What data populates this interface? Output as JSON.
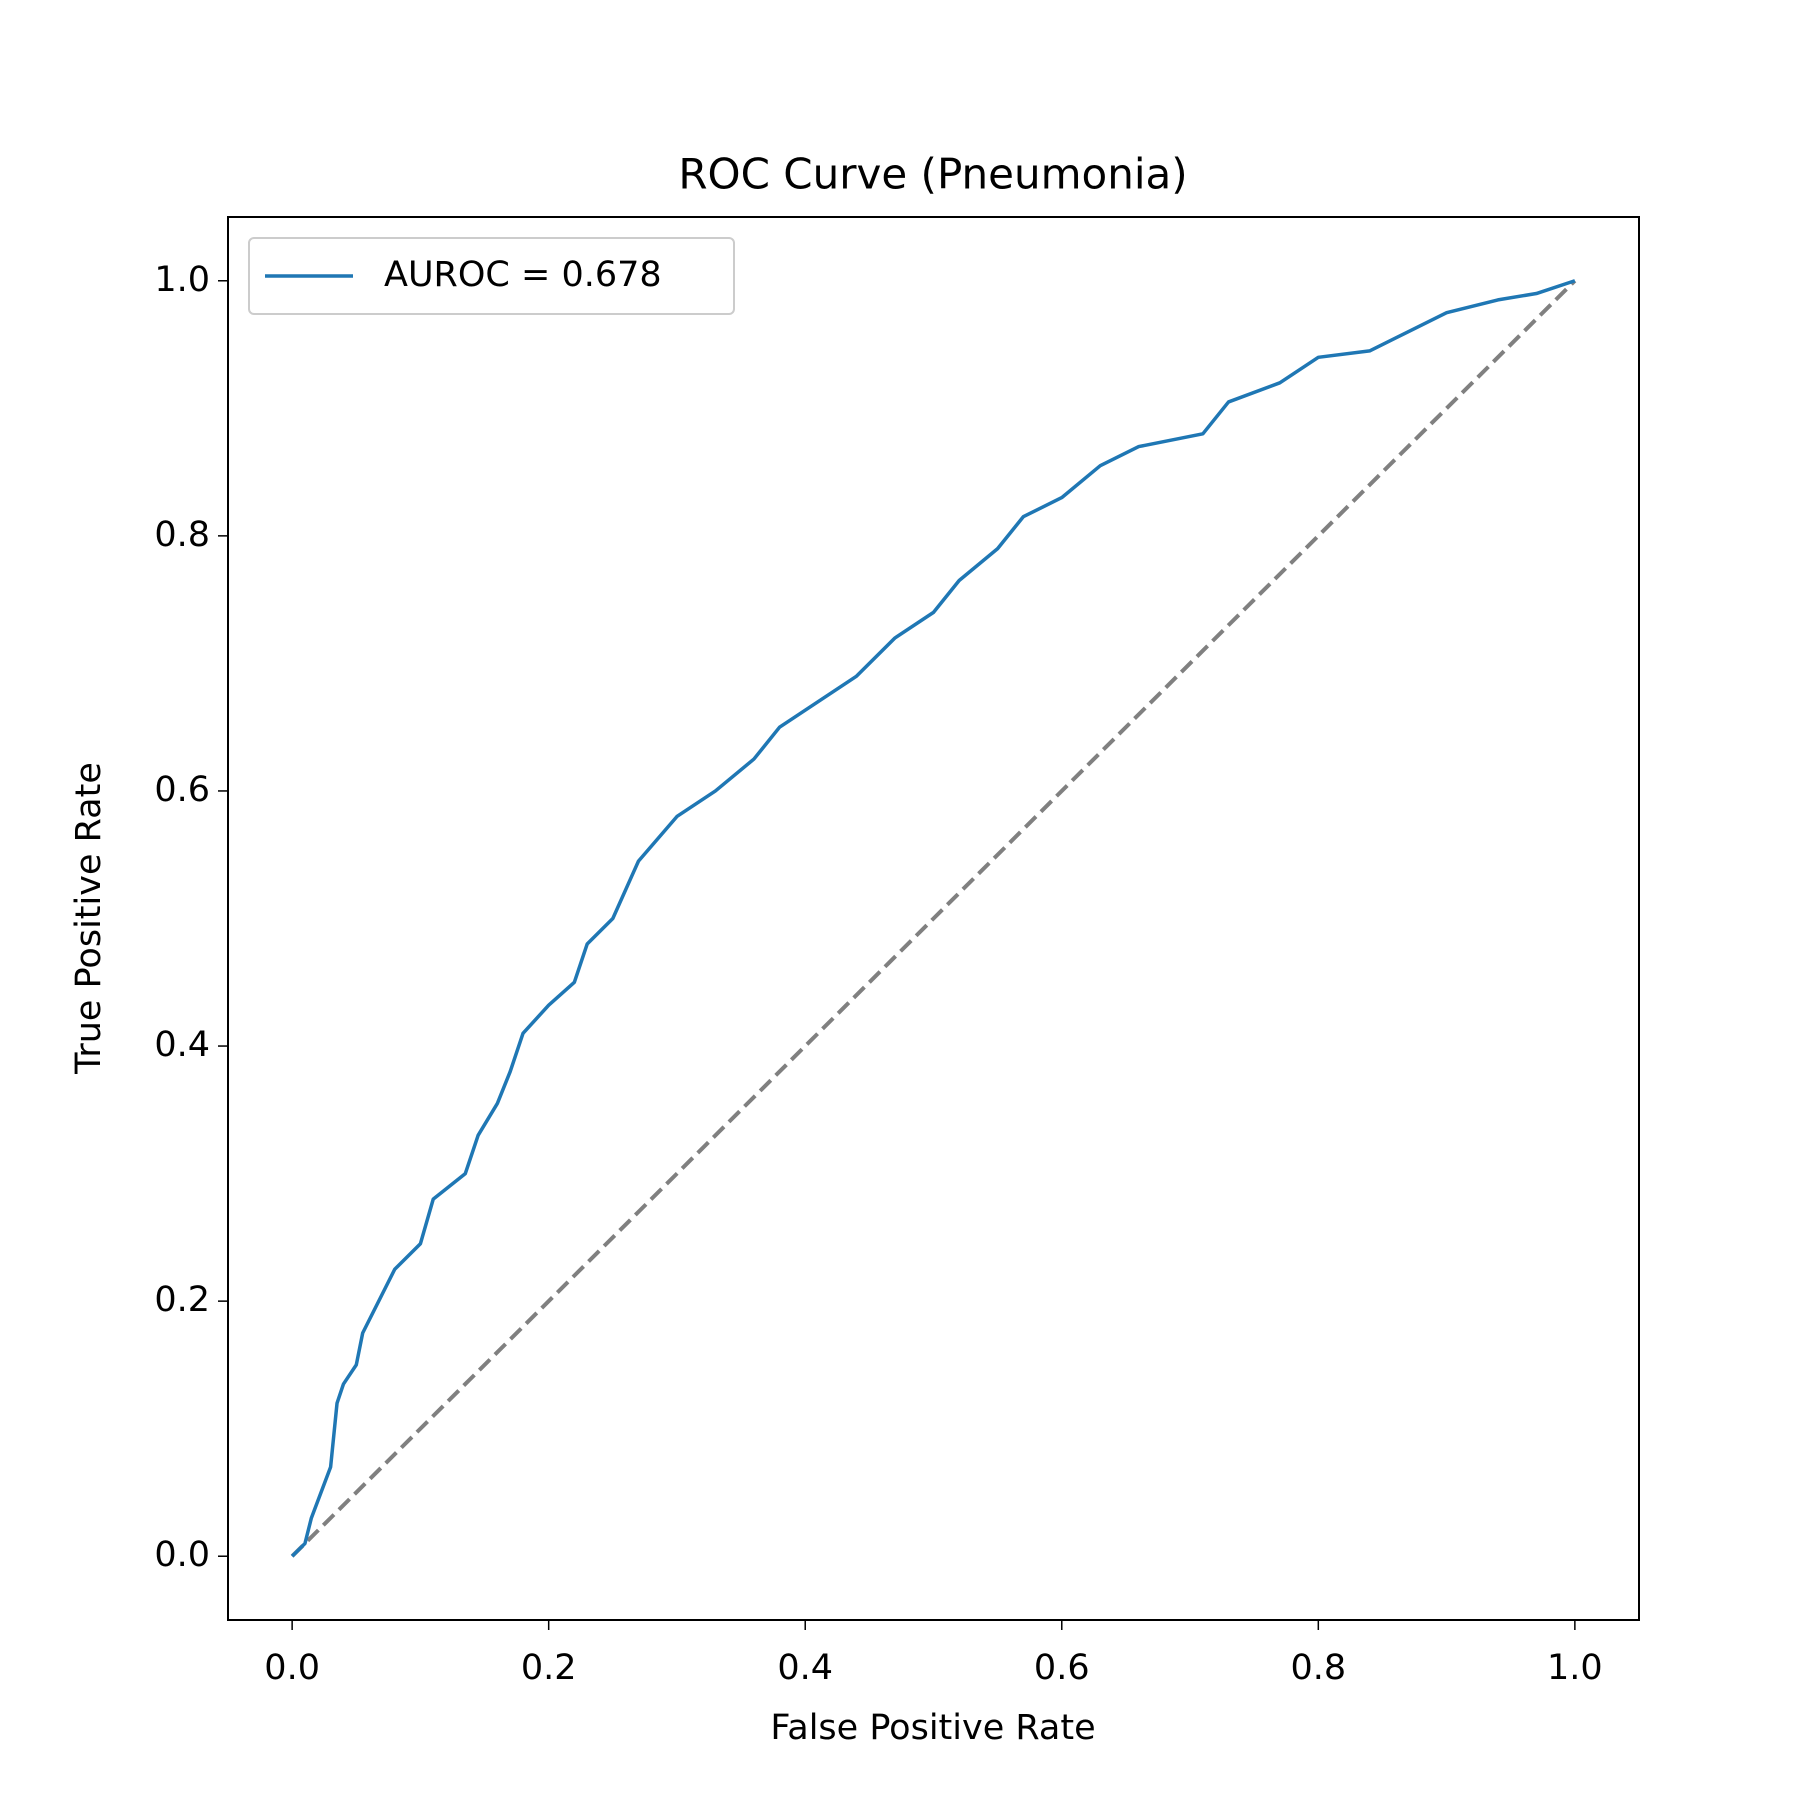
{
  "chart_data": {
    "type": "line",
    "title": "ROC Curve (Pneumonia)",
    "x_label": "False Positive Rate",
    "y_label": "True Positive Rate",
    "xlim": [
      -0.05,
      1.05
    ],
    "ylim": [
      -0.05,
      1.05
    ],
    "xticks": [
      {
        "value": 0,
        "label": "0.0"
      },
      0.2,
      0.4,
      0.6,
      0.8,
      {
        "value": 1,
        "label": "1.0"
      }
    ],
    "yticks": [
      {
        "value": 0,
        "label": "0.0"
      },
      0.2,
      0.4,
      0.6,
      0.8,
      {
        "value": 1,
        "label": "1.0"
      }
    ],
    "legend": "upper left",
    "grid": false,
    "x": [
      0,
      0.01,
      0.015,
      0.03,
      0.035,
      0.04,
      0.05,
      0.055,
      0.07,
      0.08,
      0.1,
      0.11,
      0.135,
      0.145,
      0.16,
      0.17,
      0.18,
      0.2,
      0.22,
      0.23,
      0.25,
      0.27,
      0.3,
      0.33,
      0.36,
      0.38,
      0.41,
      0.44,
      0.47,
      0.5,
      0.52,
      0.55,
      0.57,
      0.6,
      0.63,
      0.66,
      0.71,
      0.73,
      0.77,
      0.8,
      0.84,
      0.87,
      0.9,
      0.94,
      0.97,
      1
    ],
    "series": [
      {
        "name": "AUROC = 0.678",
        "color": "#1f77b4",
        "values": [
          0,
          0.01,
          0.03,
          0.07,
          0.12,
          0.135,
          0.15,
          0.175,
          0.205,
          0.225,
          0.245,
          0.28,
          0.3,
          0.33,
          0.355,
          0.38,
          0.41,
          0.432,
          0.45,
          0.48,
          0.5,
          0.545,
          0.58,
          0.6,
          0.625,
          0.65,
          0.67,
          0.69,
          0.72,
          0.74,
          0.765,
          0.79,
          0.815,
          0.83,
          0.855,
          0.87,
          0.88,
          0.905,
          0.92,
          0.94,
          0.945,
          0.96,
          0.975,
          0.985,
          0.99,
          1
        ]
      }
    ],
    "reference_line": {
      "x": [
        0,
        1
      ],
      "y": [
        0,
        1
      ],
      "color": "#808080"
    }
  }
}
